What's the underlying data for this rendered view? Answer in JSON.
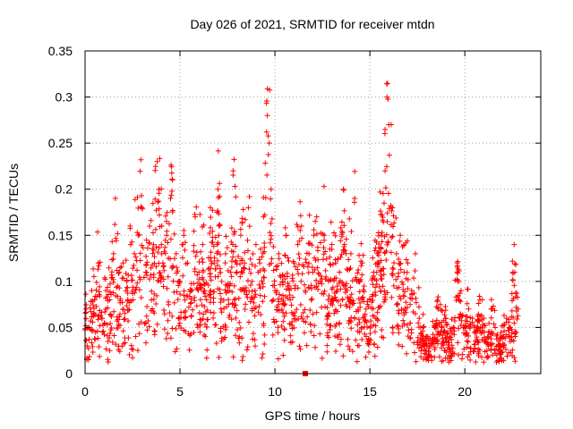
{
  "chart_data": {
    "type": "scatter",
    "title": "Day 026 of 2021, SRMTID for receiver mtdn",
    "xlabel": "GPS time / hours",
    "ylabel": "SRMTID / TECUs",
    "xlim": [
      0,
      24
    ],
    "ylim": [
      0,
      0.35
    ],
    "x_ticks": [
      0,
      5,
      10,
      15,
      20
    ],
    "x_tick_labels": [
      "0",
      "5",
      "10",
      "15",
      "20"
    ],
    "y_ticks": [
      0,
      0.05,
      0.1,
      0.15,
      0.2,
      0.25,
      0.3,
      0.35
    ],
    "y_tick_labels": [
      "0",
      "0.05",
      "0.1",
      "0.15",
      "0.2",
      "0.25",
      "0.3",
      "0.35"
    ],
    "grid": true,
    "marker": "+",
    "color": "#ff0000",
    "series": [
      {
        "name": "SRMTID",
        "x": [
          0.05,
          0.2,
          0.35,
          0.5,
          0.7,
          0.9,
          1.1,
          1.3,
          1.5,
          1.6,
          1.8,
          2.0,
          2.2,
          2.4,
          2.6,
          2.8,
          3.0,
          3.2,
          3.4,
          3.6,
          3.8,
          3.9,
          4.1,
          4.3,
          4.5,
          4.6,
          4.8,
          5.0,
          5.2,
          5.4,
          5.6,
          5.8,
          6.0,
          6.2,
          6.4,
          6.6,
          6.8,
          7.0,
          7.2,
          7.4,
          7.6,
          7.8,
          8.0,
          8.2,
          8.4,
          8.6,
          8.8,
          9.0,
          9.2,
          9.4,
          9.6,
          9.7,
          9.8,
          10.0,
          10.2,
          10.4,
          10.6,
          10.8,
          11.0,
          11.2,
          11.4,
          11.6,
          11.8,
          12.0,
          12.2,
          12.4,
          12.6,
          12.8,
          13.0,
          13.2,
          13.4,
          13.6,
          13.8,
          14.0,
          14.2,
          14.4,
          14.6,
          14.8,
          15.0,
          15.2,
          15.4,
          15.6,
          15.8,
          15.9,
          16.0,
          16.2,
          16.4,
          16.6,
          16.8,
          17.0,
          17.2,
          17.4,
          17.6,
          17.8,
          18.0,
          18.2,
          18.4,
          18.6,
          18.8,
          19.0,
          19.2,
          19.4,
          19.6,
          19.8,
          20.0,
          20.2,
          20.4,
          20.6,
          20.8,
          21.0,
          21.2,
          21.4,
          21.6,
          21.8,
          22.0,
          22.2,
          22.4,
          22.6,
          22.8
        ],
        "y": [
          0.07,
          0.05,
          0.09,
          0.08,
          0.12,
          0.06,
          0.09,
          0.08,
          0.13,
          0.19,
          0.11,
          0.12,
          0.1,
          0.14,
          0.13,
          0.15,
          0.18,
          0.11,
          0.16,
          0.14,
          0.23,
          0.2,
          0.12,
          0.15,
          0.19,
          0.21,
          0.13,
          0.1,
          0.15,
          0.12,
          0.09,
          0.17,
          0.11,
          0.14,
          0.08,
          0.18,
          0.12,
          0.2,
          0.1,
          0.13,
          0.09,
          0.22,
          0.11,
          0.15,
          0.12,
          0.18,
          0.1,
          0.14,
          0.12,
          0.17,
          0.28,
          0.25,
          0.2,
          0.09,
          0.13,
          0.1,
          0.15,
          0.08,
          0.12,
          0.14,
          0.16,
          0.09,
          0.13,
          0.11,
          0.17,
          0.1,
          0.15,
          0.08,
          0.14,
          0.12,
          0.11,
          0.2,
          0.09,
          0.13,
          0.19,
          0.1,
          0.12,
          0.07,
          0.08,
          0.11,
          0.13,
          0.15,
          0.22,
          0.3,
          0.27,
          0.18,
          0.13,
          0.15,
          0.11,
          0.12,
          0.09,
          0.13,
          0.06,
          0.05,
          0.04,
          0.03,
          0.05,
          0.07,
          0.05,
          0.06,
          0.04,
          0.05,
          0.12,
          0.09,
          0.05,
          0.07,
          0.06,
          0.05,
          0.08,
          0.06,
          0.04,
          0.07,
          0.05,
          0.03,
          0.04,
          0.06,
          0.05,
          0.14,
          0.07
        ],
        "outlier": {
          "x": 11.6,
          "y": 0.0
        }
      }
    ]
  }
}
